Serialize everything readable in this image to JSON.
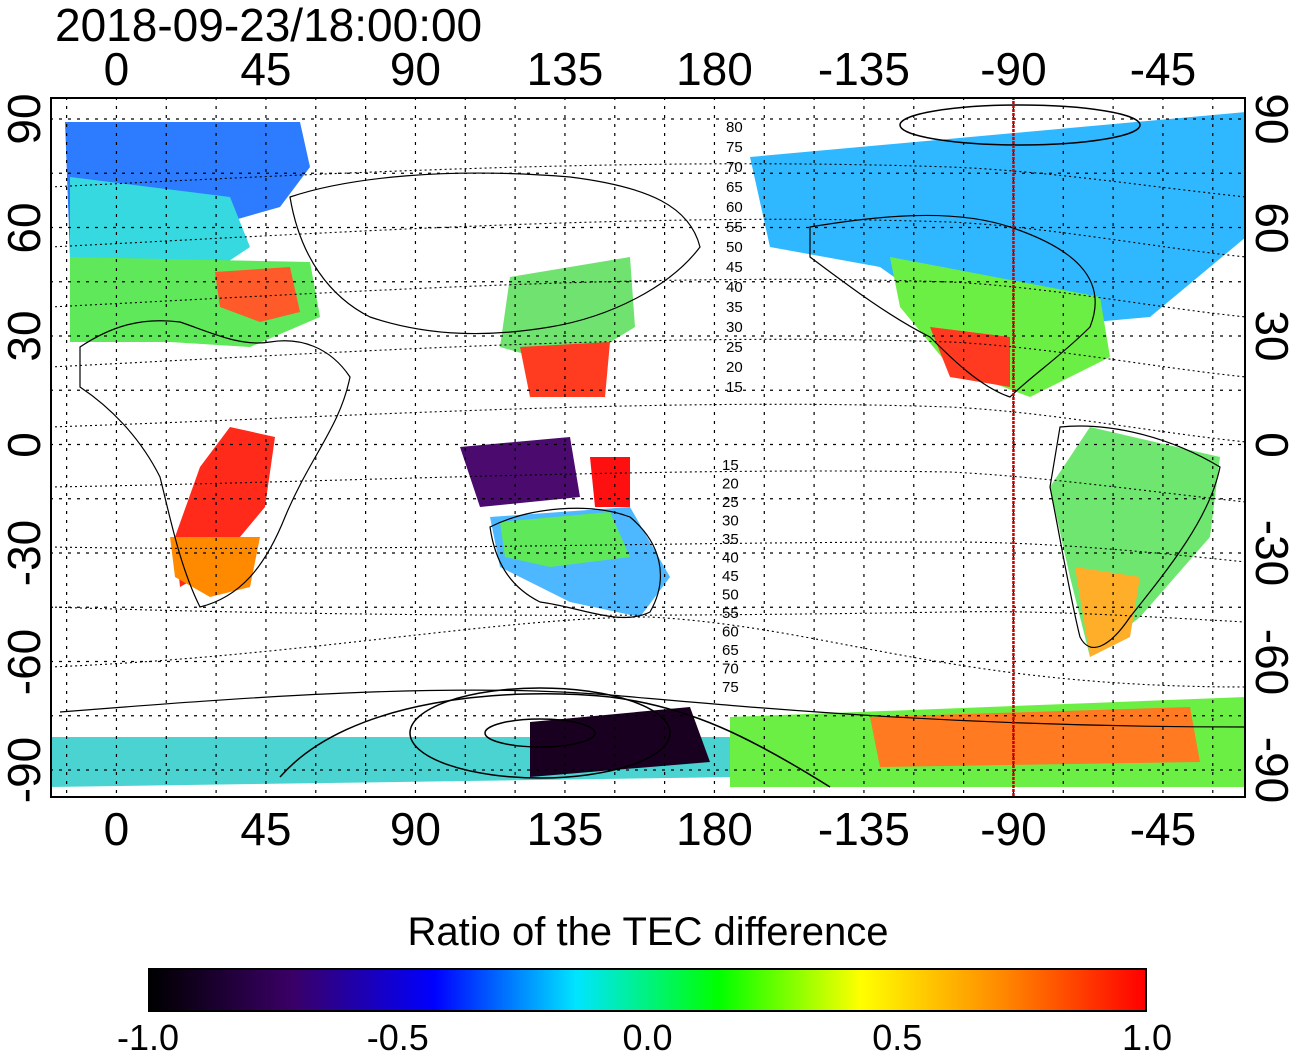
{
  "timestamp": "2018-09-23/18:00:00",
  "map": {
    "x_ticks_top": [
      "0",
      "45",
      "90",
      "135",
      "180",
      "-135",
      "-90",
      "-45"
    ],
    "x_ticks_bottom": [
      "0",
      "45",
      "90",
      "135",
      "180",
      "-135",
      "-90",
      "-45"
    ],
    "y_ticks_left": [
      "90",
      "60",
      "30",
      "0",
      "-30",
      "-60",
      "-90"
    ],
    "y_ticks_right": [
      "90",
      "60",
      "30",
      "0",
      "-30",
      "-60",
      "-90"
    ],
    "contour_labels_north": [
      "80",
      "75",
      "70",
      "65",
      "60",
      "55",
      "50",
      "45",
      "40",
      "35",
      "30",
      "25",
      "20",
      "15"
    ],
    "contour_labels_south": [
      "15",
      "20",
      "25",
      "30",
      "35",
      "40",
      "45",
      "50",
      "55",
      "60",
      "65",
      "70",
      "75"
    ],
    "marker_line_longitude": -90,
    "marker_line_color": "#cc0000"
  },
  "colorbar": {
    "title": "Ratio of the TEC difference",
    "tick_labels": [
      "-1.0",
      "-0.5",
      "0.0",
      "0.5",
      "1.0"
    ],
    "min": -1.0,
    "max": 1.0,
    "colors": [
      "#000000",
      "#3a0066",
      "#0000ff",
      "#00e5ff",
      "#00ff00",
      "#ffff00",
      "#ff8800",
      "#ff0000"
    ]
  }
}
